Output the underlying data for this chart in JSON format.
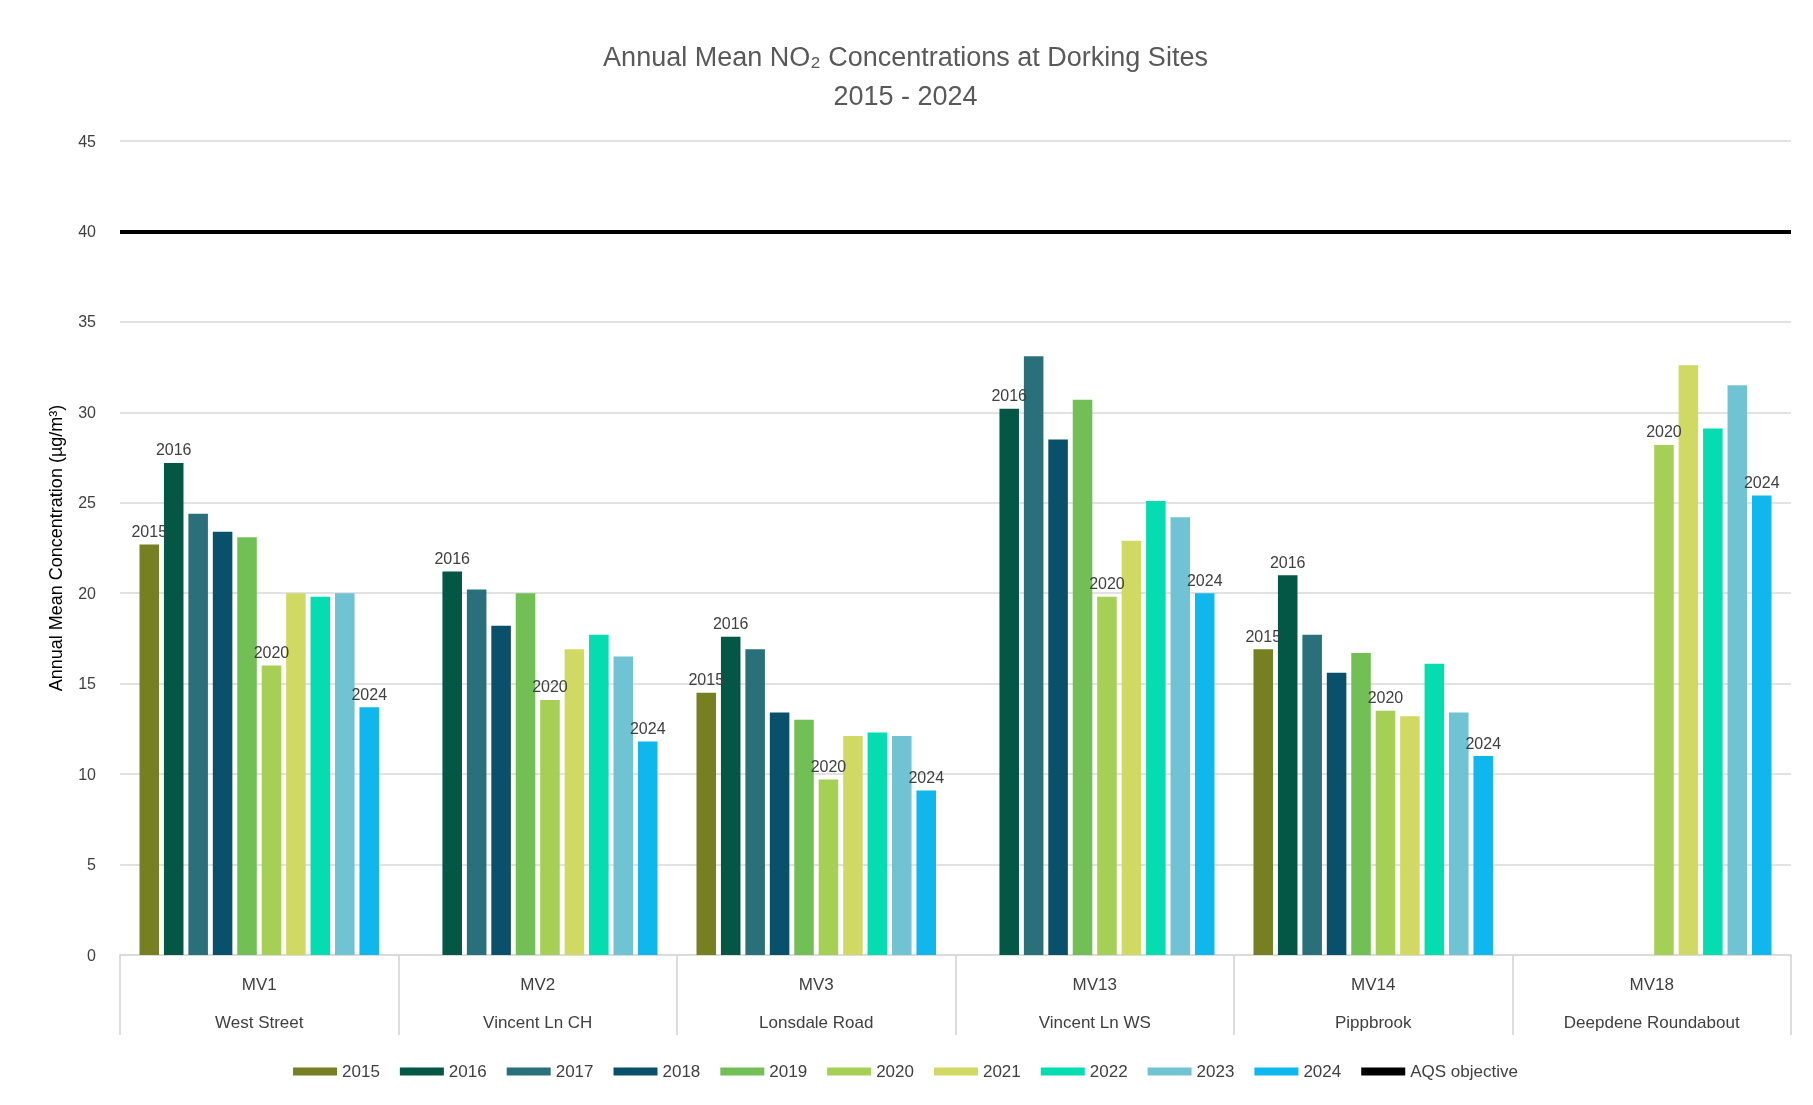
{
  "chart_data": {
    "type": "bar",
    "title": "Annual Mean NO₂ Concentrations at Dorking Sites",
    "subtitle": "2015 - 2024",
    "ylabel": "Annual Mean Concentration (µg/m³)",
    "categories": [
      "MV1\nWest Street",
      "MV2\nVincent Ln CH",
      "MV3\nLonsdale Road",
      "MV13\nVincent Ln WS",
      "MV14\nPippbrook",
      "MV18\nDeepdene Roundabout"
    ],
    "series": [
      {
        "name": "2015",
        "color": "#767f22",
        "values": [
          22.7,
          null,
          14.5,
          null,
          16.9,
          null
        ]
      },
      {
        "name": "2016",
        "color": "#035744",
        "values": [
          27.2,
          21.2,
          17.6,
          30.2,
          21.0,
          null
        ]
      },
      {
        "name": "2017",
        "color": "#29707a",
        "values": [
          24.4,
          20.2,
          16.9,
          33.1,
          17.7,
          null
        ]
      },
      {
        "name": "2018",
        "color": "#09506a",
        "values": [
          23.4,
          18.2,
          13.4,
          28.5,
          15.6,
          null
        ]
      },
      {
        "name": "2019",
        "color": "#72bf55",
        "values": [
          23.1,
          20.0,
          13.0,
          30.7,
          16.7,
          null
        ]
      },
      {
        "name": "2020",
        "color": "#a6cf55",
        "values": [
          16.0,
          14.1,
          9.7,
          19.8,
          13.5,
          28.2
        ]
      },
      {
        "name": "2021",
        "color": "#cfd964",
        "values": [
          20.0,
          16.9,
          12.1,
          22.9,
          13.2,
          32.6
        ]
      },
      {
        "name": "2022",
        "color": "#05dcb0",
        "values": [
          19.8,
          17.7,
          12.3,
          25.1,
          16.1,
          29.1
        ]
      },
      {
        "name": "2023",
        "color": "#70c3d2",
        "values": [
          20.0,
          16.5,
          12.1,
          24.2,
          13.4,
          31.5
        ]
      },
      {
        "name": "2024",
        "color": "#0fb7ec",
        "values": [
          13.7,
          11.8,
          9.1,
          20.0,
          11.0,
          25.4
        ]
      }
    ],
    "ylim": [
      0,
      45
    ],
    "yticks": [
      0,
      5,
      10,
      15,
      20,
      25,
      30,
      35,
      40,
      45
    ],
    "grid": "y",
    "legend": "bottom",
    "ref_lines": [
      {
        "axis": "y",
        "value": 40,
        "label": "AQS objective",
        "color": "#000000"
      }
    ],
    "annotations": [
      "2015",
      "2016",
      "2020",
      "2024",
      "2016",
      "2020",
      "2024",
      "2015",
      "2016",
      "2020",
      "2024",
      "2016",
      "2020",
      "2024",
      "2015",
      "2016",
      "2020",
      "2024",
      "2020",
      "2024"
    ]
  }
}
